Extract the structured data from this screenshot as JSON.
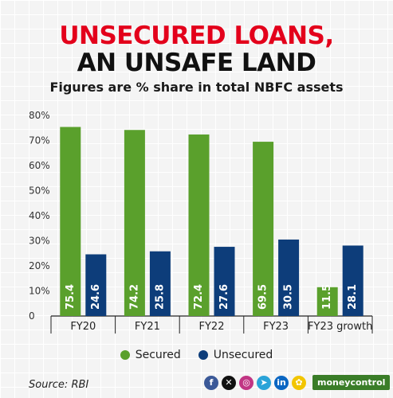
{
  "header": {
    "title_line1": "UNSECURED LOANS,",
    "title_line2": "AN UNSAFE LAND",
    "subtitle": "Figures are % share in total NBFC assets"
  },
  "colors": {
    "secured": "#5aa02c",
    "unsecured": "#0d3d7a",
    "title_accent": "#e3001b",
    "brand": "#3a7d28"
  },
  "chart_data": {
    "type": "bar",
    "categories": [
      "FY20",
      "FY21",
      "FY22",
      "FY23",
      "FY23 growth"
    ],
    "series": [
      {
        "name": "Secured",
        "values": [
          75.4,
          74.2,
          72.4,
          69.5,
          11.5
        ],
        "labels": [
          "75.4",
          "74.2",
          "72.4",
          "69.5",
          "11.5"
        ]
      },
      {
        "name": "Unsecured",
        "values": [
          24.6,
          25.8,
          27.6,
          30.5,
          28.1
        ],
        "labels": [
          "24.6",
          "25.8",
          "27.6",
          "30.5",
          "28.1"
        ]
      }
    ],
    "yticks": [
      "0",
      "10%",
      "20%",
      "30%",
      "40%",
      "50%",
      "60%",
      "70%",
      "80%"
    ],
    "ylim": [
      0,
      80
    ],
    "legend_position": "bottom",
    "grid": false
  },
  "legend": {
    "secured": "Secured",
    "unsecured": "Unsecured"
  },
  "footer": {
    "source": "Source: RBI",
    "social_icons": [
      {
        "name": "facebook-icon",
        "glyph": "f",
        "color": "#3b5998"
      },
      {
        "name": "x-icon",
        "glyph": "✕",
        "color": "#111111"
      },
      {
        "name": "instagram-icon",
        "glyph": "◎",
        "color": "#c13584"
      },
      {
        "name": "telegram-icon",
        "glyph": "➤",
        "color": "#2aa3d8"
      },
      {
        "name": "linkedin-icon",
        "glyph": "in",
        "color": "#0a66c2"
      },
      {
        "name": "snapchat-icon",
        "glyph": "✿",
        "color": "#f2c500"
      }
    ],
    "brand": "moneycontrol"
  }
}
